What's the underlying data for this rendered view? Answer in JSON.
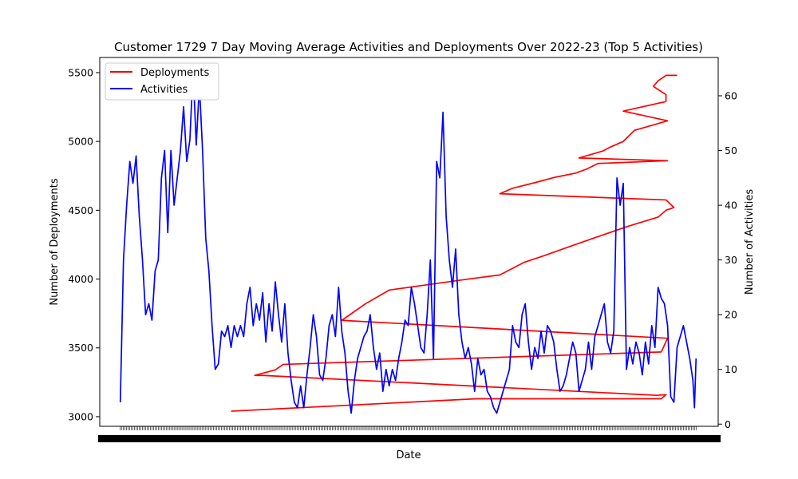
{
  "chart_data": {
    "type": "line",
    "title": "Customer 1729 7 Day Moving Average Activities and Deployments Over 2022-23 (Top 5 Activities)",
    "xlabel": "Date",
    "ylabel_left": "Number of Deployments",
    "ylabel_right": "Number of Activities",
    "ylim_left": [
      2930,
      5610
    ],
    "ylim_right": [
      -0.4,
      67
    ],
    "yticks_left": [
      3000,
      3500,
      4000,
      4500,
      5000,
      5500
    ],
    "yticks_right": [
      0,
      10,
      20,
      30,
      40,
      50,
      60
    ],
    "legend_position": "top-left",
    "x_tick_labels_overlapping": "2022-01 … 2023-12 (illegible, overlapping)",
    "x_categories_count": 365,
    "series": [
      {
        "name": "Deployments",
        "axis": "left",
        "color": "#ff0000",
        "points": [
          [
            70,
            3040
          ],
          [
            225,
            3130
          ],
          [
            342,
            3130
          ],
          [
            345,
            3160
          ],
          [
            339,
            3155
          ],
          [
            90,
            3300
          ],
          [
            85,
            3300
          ],
          [
            98,
            3340
          ],
          [
            103,
            3380
          ],
          [
            342,
            3470
          ],
          [
            346,
            3570
          ],
          [
            140,
            3700
          ],
          [
            145,
            3740
          ],
          [
            155,
            3820
          ],
          [
            170,
            3920
          ],
          [
            195,
            3960
          ],
          [
            220,
            4000
          ],
          [
            240,
            4030
          ],
          [
            255,
            4120
          ],
          [
            268,
            4170
          ],
          [
            285,
            4240
          ],
          [
            300,
            4300
          ],
          [
            320,
            4380
          ],
          [
            340,
            4450
          ],
          [
            345,
            4500
          ],
          [
            350,
            4520
          ],
          [
            345,
            4575
          ],
          [
            240,
            4620
          ],
          [
            248,
            4660
          ],
          [
            262,
            4700
          ],
          [
            275,
            4740
          ],
          [
            288,
            4770
          ],
          [
            295,
            4800
          ],
          [
            302,
            4840
          ],
          [
            346,
            4860
          ],
          [
            290,
            4880
          ],
          [
            296,
            4900
          ],
          [
            305,
            4930
          ],
          [
            310,
            4960
          ],
          [
            318,
            5000
          ],
          [
            325,
            5080
          ],
          [
            346,
            5150
          ],
          [
            318,
            5220
          ],
          [
            345,
            5290
          ],
          [
            345,
            5340
          ],
          [
            337,
            5400
          ],
          [
            340,
            5440
          ],
          [
            345,
            5480
          ],
          [
            352,
            5480
          ]
        ]
      },
      {
        "name": "Activities",
        "axis": "right",
        "color": "#0000ff",
        "points": [
          [
            0,
            4
          ],
          [
            2,
            30
          ],
          [
            4,
            40
          ],
          [
            6,
            48
          ],
          [
            8,
            44
          ],
          [
            10,
            49
          ],
          [
            12,
            38
          ],
          [
            14,
            30
          ],
          [
            16,
            20
          ],
          [
            18,
            22
          ],
          [
            20,
            19
          ],
          [
            22,
            28
          ],
          [
            24,
            30
          ],
          [
            26,
            45
          ],
          [
            28,
            50
          ],
          [
            30,
            35
          ],
          [
            32,
            50
          ],
          [
            34,
            40
          ],
          [
            36,
            45
          ],
          [
            38,
            50
          ],
          [
            40,
            58
          ],
          [
            42,
            48
          ],
          [
            44,
            52
          ],
          [
            46,
            65
          ],
          [
            48,
            51
          ],
          [
            50,
            62
          ],
          [
            52,
            50
          ],
          [
            54,
            34
          ],
          [
            56,
            28
          ],
          [
            58,
            18
          ],
          [
            60,
            10
          ],
          [
            62,
            11
          ],
          [
            64,
            17
          ],
          [
            66,
            16
          ],
          [
            68,
            18
          ],
          [
            70,
            14
          ],
          [
            72,
            18
          ],
          [
            74,
            16
          ],
          [
            76,
            18
          ],
          [
            78,
            16
          ],
          [
            80,
            22
          ],
          [
            82,
            25
          ],
          [
            84,
            18
          ],
          [
            86,
            22
          ],
          [
            88,
            19
          ],
          [
            90,
            24
          ],
          [
            92,
            15
          ],
          [
            94,
            22
          ],
          [
            96,
            17
          ],
          [
            98,
            26
          ],
          [
            100,
            20
          ],
          [
            102,
            15
          ],
          [
            104,
            22
          ],
          [
            106,
            13
          ],
          [
            108,
            8
          ],
          [
            110,
            4
          ],
          [
            112,
            3
          ],
          [
            114,
            7
          ],
          [
            116,
            3
          ],
          [
            118,
            9
          ],
          [
            120,
            14
          ],
          [
            122,
            20
          ],
          [
            124,
            16
          ],
          [
            126,
            9
          ],
          [
            128,
            8
          ],
          [
            130,
            12
          ],
          [
            132,
            18
          ],
          [
            134,
            20
          ],
          [
            136,
            16
          ],
          [
            138,
            25
          ],
          [
            140,
            17
          ],
          [
            142,
            13
          ],
          [
            144,
            6
          ],
          [
            146,
            2
          ],
          [
            148,
            8
          ],
          [
            150,
            12
          ],
          [
            152,
            14
          ],
          [
            154,
            16
          ],
          [
            156,
            17
          ],
          [
            158,
            20
          ],
          [
            160,
            14
          ],
          [
            162,
            10
          ],
          [
            164,
            13
          ],
          [
            166,
            6
          ],
          [
            168,
            10
          ],
          [
            170,
            7
          ],
          [
            172,
            10
          ],
          [
            174,
            8
          ],
          [
            176,
            12
          ],
          [
            178,
            15
          ],
          [
            180,
            19
          ],
          [
            182,
            18
          ],
          [
            184,
            25
          ],
          [
            186,
            22
          ],
          [
            188,
            18
          ],
          [
            190,
            14
          ],
          [
            192,
            13
          ],
          [
            194,
            20
          ],
          [
            196,
            30
          ],
          [
            198,
            12
          ],
          [
            200,
            48
          ],
          [
            202,
            45
          ],
          [
            204,
            57
          ],
          [
            206,
            38
          ],
          [
            208,
            30
          ],
          [
            210,
            25
          ],
          [
            212,
            32
          ],
          [
            214,
            20
          ],
          [
            216,
            15
          ],
          [
            218,
            12
          ],
          [
            220,
            14
          ],
          [
            222,
            11
          ],
          [
            224,
            6
          ],
          [
            226,
            12
          ],
          [
            228,
            9
          ],
          [
            230,
            10
          ],
          [
            232,
            6
          ],
          [
            234,
            5
          ],
          [
            236,
            3
          ],
          [
            238,
            2
          ],
          [
            240,
            4
          ],
          [
            242,
            6
          ],
          [
            244,
            8
          ],
          [
            246,
            10
          ],
          [
            248,
            18
          ],
          [
            250,
            15
          ],
          [
            252,
            14
          ],
          [
            254,
            20
          ],
          [
            256,
            22
          ],
          [
            258,
            15
          ],
          [
            260,
            10
          ],
          [
            262,
            14
          ],
          [
            264,
            12
          ],
          [
            266,
            17
          ],
          [
            268,
            13
          ],
          [
            270,
            18
          ],
          [
            272,
            17
          ],
          [
            274,
            15
          ],
          [
            276,
            10
          ],
          [
            278,
            6
          ],
          [
            280,
            7
          ],
          [
            282,
            9
          ],
          [
            284,
            12
          ],
          [
            286,
            15
          ],
          [
            288,
            13
          ],
          [
            290,
            6
          ],
          [
            292,
            8
          ],
          [
            294,
            10
          ],
          [
            296,
            15
          ],
          [
            298,
            10
          ],
          [
            300,
            16
          ],
          [
            302,
            18
          ],
          [
            304,
            20
          ],
          [
            306,
            22
          ],
          [
            308,
            15
          ],
          [
            310,
            13
          ],
          [
            312,
            17
          ],
          [
            314,
            45
          ],
          [
            316,
            40
          ],
          [
            318,
            44
          ],
          [
            320,
            10
          ],
          [
            322,
            14
          ],
          [
            324,
            11
          ],
          [
            326,
            15
          ],
          [
            328,
            13
          ],
          [
            330,
            9
          ],
          [
            332,
            15
          ],
          [
            334,
            11
          ],
          [
            336,
            18
          ],
          [
            338,
            14
          ],
          [
            340,
            25
          ],
          [
            342,
            23
          ],
          [
            344,
            22
          ],
          [
            346,
            18
          ],
          [
            348,
            5
          ],
          [
            350,
            4
          ],
          [
            352,
            14
          ],
          [
            354,
            16
          ],
          [
            356,
            18
          ],
          [
            358,
            15
          ],
          [
            360,
            12
          ],
          [
            362,
            8
          ],
          [
            363,
            3
          ],
          [
            364,
            12
          ]
        ]
      }
    ]
  }
}
